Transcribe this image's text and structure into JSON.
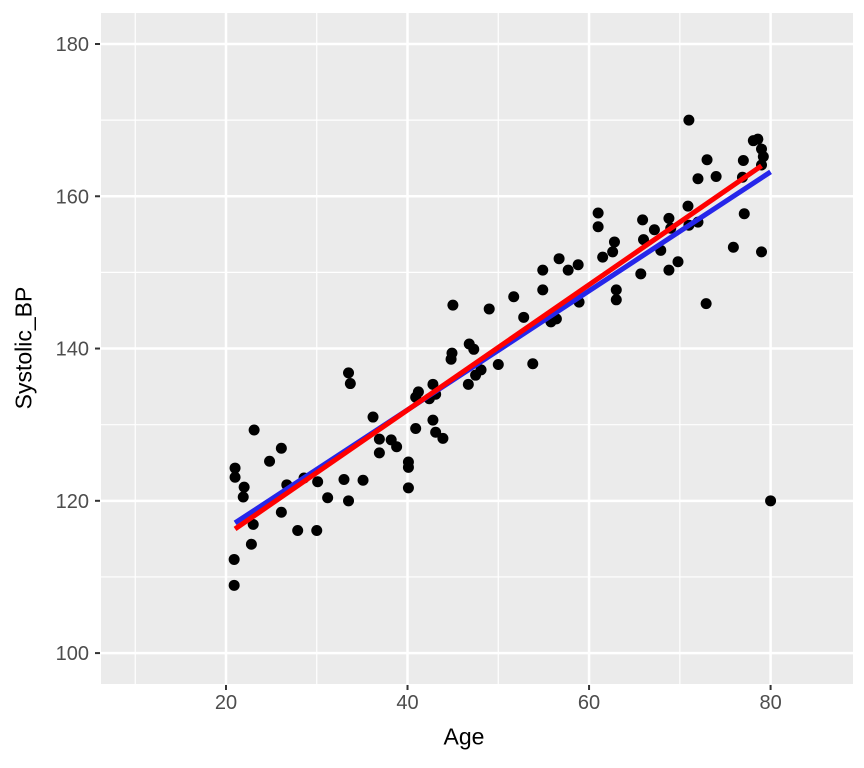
{
  "figure": {
    "background": "#FFFFFF"
  },
  "chart_data": {
    "type": "scatter",
    "title": "",
    "xlabel": "Age",
    "ylabel": "Systolic_BP",
    "xlim": [
      6.23,
      89.08
    ],
    "ylim": [
      95.94,
      184.07
    ],
    "x_ticks": [
      20,
      40,
      60,
      80
    ],
    "y_ticks": [
      100,
      120,
      140,
      160,
      180
    ],
    "grid": "major+minor",
    "legend": "none",
    "theme": {
      "panel_bg": "#EBEBEB",
      "grid_color": "#FFFFFF",
      "tick_label_color": "#4D4D4D",
      "tick_mark_color": "#333333",
      "axis_title_color": "#000000",
      "point_color": "#000000"
    },
    "points": [
      [
        21,
        124.3
      ],
      [
        24.8,
        125.2
      ],
      [
        21,
        123.1
      ],
      [
        22,
        121.8
      ],
      [
        21.9,
        120.5
      ],
      [
        26.7,
        122.1
      ],
      [
        28.6,
        123
      ],
      [
        30.1,
        122.5
      ],
      [
        33,
        122.8
      ],
      [
        31.2,
        120.4
      ],
      [
        33.5,
        120
      ],
      [
        26.1,
        118.5
      ],
      [
        23,
        116.9
      ],
      [
        27.9,
        116.1
      ],
      [
        30,
        116.1
      ],
      [
        22.8,
        114.3
      ],
      [
        20.9,
        112.3
      ],
      [
        20.9,
        108.9
      ],
      [
        33.5,
        136.8
      ],
      [
        33.7,
        135.4
      ],
      [
        23.1,
        129.3
      ],
      [
        26.1,
        126.9
      ],
      [
        36.2,
        131
      ],
      [
        36.9,
        128.1
      ],
      [
        38.2,
        128
      ],
      [
        38.8,
        127.1
      ],
      [
        40.9,
        129.5
      ],
      [
        45,
        145.7
      ],
      [
        49,
        145.2
      ],
      [
        51.7,
        146.8
      ],
      [
        52.8,
        144.1
      ],
      [
        54.9,
        150.3
      ],
      [
        54.9,
        147.7
      ],
      [
        56.7,
        151.8
      ],
      [
        57.7,
        150.3
      ],
      [
        58.8,
        151
      ],
      [
        55.8,
        143.5
      ],
      [
        56.4,
        143.9
      ],
      [
        58.9,
        146.1
      ],
      [
        53.8,
        138
      ],
      [
        44.9,
        139.4
      ],
      [
        44.8,
        138.6
      ],
      [
        46.8,
        140.6
      ],
      [
        47.3,
        139.9
      ],
      [
        48.1,
        137.2
      ],
      [
        47.5,
        136.5
      ],
      [
        50,
        137.9
      ],
      [
        46.7,
        135.3
      ],
      [
        42.8,
        135.3
      ],
      [
        43.1,
        134
      ],
      [
        42.4,
        133.4
      ],
      [
        41.2,
        134.3
      ],
      [
        40.9,
        133.6
      ],
      [
        42.8,
        130.6
      ],
      [
        43.1,
        129
      ],
      [
        62.8,
        154
      ],
      [
        62.6,
        152.7
      ],
      [
        61.5,
        152
      ],
      [
        66,
        154.3
      ],
      [
        67.9,
        152.9
      ],
      [
        69.8,
        151.4
      ],
      [
        68.8,
        150.3
      ],
      [
        65.7,
        149.8
      ],
      [
        63,
        147.7
      ],
      [
        63,
        146.4
      ],
      [
        72.9,
        145.9
      ],
      [
        75.9,
        153.3
      ],
      [
        79,
        152.7
      ],
      [
        71,
        170
      ],
      [
        78.1,
        167.3
      ],
      [
        78.6,
        167.5
      ],
      [
        79,
        166.2
      ],
      [
        79.2,
        165.2
      ],
      [
        79,
        164.1
      ],
      [
        77,
        164.7
      ],
      [
        73,
        164.8
      ],
      [
        72,
        162.3
      ],
      [
        74,
        162.6
      ],
      [
        76.9,
        162.5
      ],
      [
        65.9,
        156.9
      ],
      [
        67.2,
        155.6
      ],
      [
        68.8,
        157.1
      ],
      [
        69,
        155.8
      ],
      [
        70.9,
        158.7
      ],
      [
        71,
        156.2
      ],
      [
        72,
        156.6
      ],
      [
        77.1,
        157.7
      ],
      [
        61,
        157.8
      ],
      [
        61,
        156
      ],
      [
        43.9,
        128.2
      ],
      [
        40.1,
        125.1
      ],
      [
        40.1,
        124.4
      ],
      [
        35.1,
        122.7
      ],
      [
        40.1,
        121.7
      ],
      [
        36.9,
        126.3
      ],
      [
        80,
        120
      ]
    ],
    "trend_lines": [
      {
        "name": "linear-fit",
        "color": "#2626EA",
        "x": [
          21,
          80
        ],
        "y": [
          117.1,
          163.2
        ]
      },
      {
        "name": "smooth-fit",
        "color": "#FF0000",
        "x": [
          21,
          79
        ],
        "y": [
          116.3,
          164.0
        ]
      }
    ]
  }
}
